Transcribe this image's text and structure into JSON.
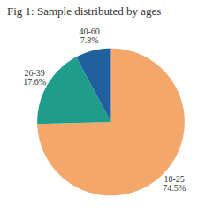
{
  "chart_data": {
    "type": "pie",
    "title": "Fig 1: Sample distributed by ages",
    "categories": [
      "18-25",
      "26-39",
      "40-60"
    ],
    "values": [
      74.5,
      17.6,
      7.8
    ],
    "value_labels": [
      "74.5%",
      "17.6%",
      "7.8%"
    ],
    "colors": [
      "#f4a76a",
      "#1e9e8a",
      "#20609f"
    ],
    "data_labels": true
  }
}
